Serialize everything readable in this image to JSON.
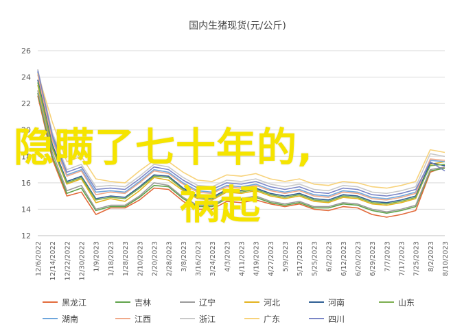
{
  "chart_data": {
    "type": "line",
    "title": "国内生猪现货(元/公斤)",
    "xlabel": "",
    "ylabel": "",
    "ylim": [
      12,
      26
    ],
    "yticks": [
      12,
      14,
      16,
      18,
      20,
      22,
      24,
      26
    ],
    "grid": "horizontal",
    "legend_position": "bottom",
    "x": [
      "12/6/2022",
      "12/14/2022",
      "12/22/2022",
      "12/30/2022",
      "1/9/2023",
      "1/18/2023",
      "1/28/2023",
      "2/10/2023",
      "2/20/2023",
      "2/28/2023",
      "3/8/2023",
      "3/16/2023",
      "3/24/2023",
      "4/3/2023",
      "4/11/2023",
      "4/19/2023",
      "4/27/2023",
      "5/9/2023",
      "5/17/2023",
      "5/25/2023",
      "6/2/2023",
      "6/12/2023",
      "6/20/2023",
      "6/29/2023",
      "7/7/2023",
      "7/17/2023",
      "7/25/2023",
      "8/2/2023",
      "8/10/2023"
    ],
    "series": [
      {
        "name": "黑龙江",
        "color": "#e26a3a",
        "values": [
          22.6,
          17.8,
          15.0,
          15.3,
          13.6,
          14.1,
          14.1,
          14.7,
          15.6,
          15.5,
          14.6,
          14.0,
          14.0,
          14.6,
          14.5,
          14.7,
          14.4,
          14.2,
          14.4,
          14.0,
          13.9,
          14.2,
          14.1,
          13.6,
          13.4,
          13.6,
          13.9,
          16.8,
          17.2
        ]
      },
      {
        "name": "吉林",
        "color": "#5fa34a",
        "values": [
          22.8,
          18.0,
          15.2,
          15.6,
          13.9,
          14.2,
          14.2,
          14.9,
          15.8,
          15.7,
          14.8,
          14.2,
          14.2,
          14.8,
          14.7,
          14.9,
          14.5,
          14.3,
          14.5,
          14.1,
          14.1,
          14.4,
          14.3,
          13.9,
          13.7,
          13.9,
          14.2,
          16.9,
          17.1
        ]
      },
      {
        "name": "辽宁",
        "color": "#9a9a9a",
        "values": [
          23.0,
          18.3,
          15.4,
          15.8,
          14.0,
          14.3,
          14.3,
          15.0,
          16.0,
          15.8,
          14.9,
          14.3,
          14.3,
          14.9,
          14.8,
          15.0,
          14.6,
          14.4,
          14.6,
          14.2,
          14.2,
          14.5,
          14.4,
          14.0,
          13.8,
          14.0,
          14.3,
          17.0,
          17.2
        ]
      },
      {
        "name": "河北",
        "color": "#e3b21e",
        "values": [
          23.4,
          18.6,
          15.9,
          16.3,
          14.5,
          14.8,
          14.6,
          15.4,
          16.4,
          16.2,
          15.4,
          14.8,
          14.7,
          15.3,
          15.2,
          15.4,
          15.0,
          14.8,
          15.0,
          14.6,
          14.5,
          14.9,
          14.8,
          14.4,
          14.3,
          14.5,
          14.8,
          17.4,
          17.6
        ]
      },
      {
        "name": "河南",
        "color": "#2e5d93",
        "values": [
          23.8,
          18.9,
          16.1,
          16.5,
          14.8,
          15.0,
          14.9,
          15.7,
          16.6,
          16.5,
          15.6,
          15.0,
          14.9,
          15.5,
          15.4,
          15.6,
          15.2,
          15.0,
          15.2,
          14.8,
          14.7,
          15.1,
          15.0,
          14.6,
          14.5,
          14.7,
          15.0,
          17.5,
          17.3
        ]
      },
      {
        "name": "山东",
        "color": "#7bae4e",
        "values": [
          23.6,
          18.7,
          16.0,
          16.4,
          14.7,
          14.9,
          14.8,
          15.6,
          16.5,
          16.4,
          15.5,
          14.9,
          14.8,
          15.4,
          15.3,
          15.5,
          15.1,
          14.9,
          15.1,
          14.7,
          14.6,
          15.0,
          14.9,
          14.5,
          14.4,
          14.6,
          14.9,
          17.3,
          17.4
        ]
      },
      {
        "name": "湖南",
        "color": "#6ea6dc",
        "values": [
          24.4,
          19.4,
          16.6,
          17.0,
          15.3,
          15.4,
          15.3,
          16.1,
          17.0,
          16.8,
          16.0,
          15.4,
          15.3,
          15.8,
          15.7,
          15.9,
          15.5,
          15.3,
          15.5,
          15.1,
          15.0,
          15.4,
          15.3,
          14.9,
          14.8,
          15.0,
          15.3,
          17.7,
          17.6
        ]
      },
      {
        "name": "江西",
        "color": "#f0a98a",
        "values": [
          24.2,
          19.2,
          16.5,
          16.9,
          15.1,
          15.3,
          15.2,
          16.0,
          16.9,
          16.7,
          15.9,
          15.3,
          15.2,
          15.7,
          15.6,
          15.8,
          15.4,
          15.2,
          15.4,
          15.0,
          14.9,
          15.3,
          15.2,
          14.8,
          14.7,
          14.9,
          15.2,
          17.8,
          17.7
        ]
      },
      {
        "name": "浙江",
        "color": "#c9c9c9",
        "values": [
          24.6,
          19.8,
          17.0,
          17.4,
          15.7,
          15.8,
          15.7,
          16.5,
          17.4,
          17.2,
          16.4,
          15.8,
          15.7,
          16.2,
          16.1,
          16.3,
          15.9,
          15.7,
          15.9,
          15.5,
          15.4,
          15.8,
          15.7,
          15.3,
          15.2,
          15.4,
          15.7,
          18.2,
          18.0
        ]
      },
      {
        "name": "广东",
        "color": "#f7d27a",
        "values": [
          24.3,
          20.6,
          17.6,
          18.0,
          16.3,
          16.1,
          16.0,
          16.9,
          17.7,
          17.6,
          16.8,
          16.2,
          16.1,
          16.6,
          16.5,
          16.7,
          16.3,
          16.1,
          16.3,
          15.9,
          15.8,
          16.1,
          16.0,
          15.7,
          15.6,
          15.8,
          16.1,
          18.5,
          18.3
        ]
      },
      {
        "name": "四川",
        "color": "#7b86c6",
        "values": [
          24.5,
          19.6,
          16.8,
          17.2,
          15.5,
          15.6,
          15.5,
          16.3,
          17.2,
          17.0,
          16.2,
          15.6,
          15.5,
          16.0,
          15.9,
          16.1,
          15.7,
          15.5,
          15.7,
          15.3,
          15.2,
          15.6,
          15.5,
          15.1,
          15.0,
          15.2,
          15.5,
          17.6,
          16.9
        ]
      }
    ]
  },
  "overlay": {
    "line1": "隐瞒了七十年的,",
    "line2": "祸起"
  }
}
